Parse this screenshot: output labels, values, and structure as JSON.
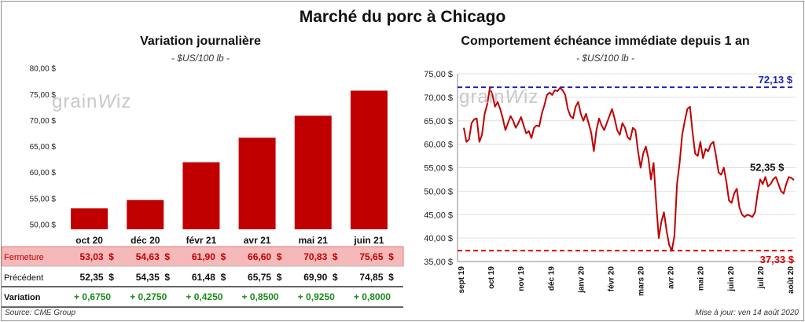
{
  "page": {
    "main_title": "Marché du porc à Chicago",
    "source": "Source: CME Group",
    "updated": "Mise à jour: ven 14 août 2020",
    "watermark": "grainwiz"
  },
  "colors": {
    "bar": "#c00000",
    "line": "#c00000",
    "max_line": "#1f1fbf",
    "min_line": "#e00000",
    "fermeture_bg": "#f6b9b9",
    "positive": "#1a8a1a"
  },
  "chart_data": [
    {
      "type": "bar",
      "title": "Variation journalière",
      "unit": "- $US/100 lb -",
      "categories": [
        "oct 20",
        "déc 20",
        "févr 21",
        "avr 21",
        "mai 21",
        "juin 21"
      ],
      "values": [
        53.03,
        54.63,
        61.9,
        66.6,
        70.83,
        75.65
      ],
      "ylim": [
        49,
        81
      ],
      "yticks": [
        "50,00 $",
        "55,00 $",
        "60,00 $",
        "65,00 $",
        "70,00 $",
        "75,00 $",
        "80,00 $"
      ],
      "grid": false,
      "table": [
        {
          "label": "Fermeture",
          "cells": [
            "53,03",
            "54,63",
            "61,90",
            "66,60",
            "70,83",
            "75,65"
          ],
          "currency": "$",
          "highlight": true
        },
        {
          "label": "Précédent",
          "cells": [
            "52,35",
            "54,35",
            "61,48",
            "65,75",
            "69,90",
            "74,85"
          ],
          "currency": "$",
          "highlight": false
        },
        {
          "label": "Variation",
          "cells": [
            "+ 0,6750",
            "+ 0,2750",
            "+ 0,4250",
            "+ 0,8500",
            "+ 0,9250",
            "+ 0,8000"
          ],
          "currency": "",
          "highlight": false
        }
      ]
    },
    {
      "type": "line",
      "title": "Comportement  échéance immédiate depuis 1 an",
      "unit": "- $US/100 lb -",
      "x_labels": [
        "sept 19",
        "oct 19",
        "nov 19",
        "déc 19",
        "janv 20",
        "févr 20",
        "mars 20",
        "avr 20",
        "mai 20",
        "juin 20",
        "juil 20",
        "août 20"
      ],
      "ylim": [
        35,
        75
      ],
      "yticks": [
        "35,00 $",
        "40,00 $",
        "45,00 $",
        "50,00 $",
        "55,00 $",
        "60,00 $",
        "65,00 $",
        "70,00 $",
        "75,00 $"
      ],
      "grid": true,
      "max": {
        "value": 72.13,
        "label": "72,13 $"
      },
      "min": {
        "value": 37.33,
        "label": "37,33 $"
      },
      "last": {
        "value": 52.35,
        "label": "52,35 $"
      },
      "series": [
        {
          "values": [
            63.5,
            60.5,
            61.0,
            64.5,
            65.3,
            65.5,
            60.5,
            62.0,
            66.5,
            68.5,
            72.0,
            70.5,
            68.0,
            69.0,
            67.5,
            65.5,
            63.0,
            64.5,
            66.0,
            65.0,
            63.5,
            64.5,
            65.8,
            64.0,
            62.3,
            62.8,
            61.3,
            63.5,
            64.0,
            63.8,
            66.5,
            68.3,
            70.5,
            71.0,
            70.5,
            71.5,
            71.3,
            72.0,
            71.5,
            70.5,
            67.5,
            66.0,
            65.5,
            68.0,
            69.0,
            66.5,
            65.0,
            66.5,
            64.5,
            62.5,
            58.5,
            63.0,
            65.5,
            64.0,
            63.0,
            64.5,
            66.0,
            67.5,
            65.5,
            63.0,
            62.0,
            64.5,
            63.5,
            61.5,
            61.0,
            63.5,
            63.0,
            58.5,
            55.0,
            58.0,
            59.5,
            57.0,
            52.5,
            56.0,
            47.5,
            40.0,
            43.5,
            45.5,
            41.5,
            38.5,
            37.3,
            40.5,
            51.5,
            56.0,
            62.0,
            65.0,
            67.5,
            68.0,
            62.5,
            58.0,
            57.5,
            60.5,
            57.0,
            59.0,
            58.5,
            60.0,
            60.5,
            57.5,
            54.0,
            53.5,
            55.0,
            52.0,
            48.0,
            47.5,
            49.5,
            50.5,
            46.5,
            45.0,
            44.5,
            45.0,
            44.8,
            44.5,
            45.5,
            49.5,
            52.5,
            51.5,
            53.0,
            51.0,
            51.5,
            52.5,
            53.0,
            51.5,
            50.0,
            49.5,
            51.5,
            53.0,
            52.8,
            52.35
          ]
        }
      ]
    }
  ]
}
